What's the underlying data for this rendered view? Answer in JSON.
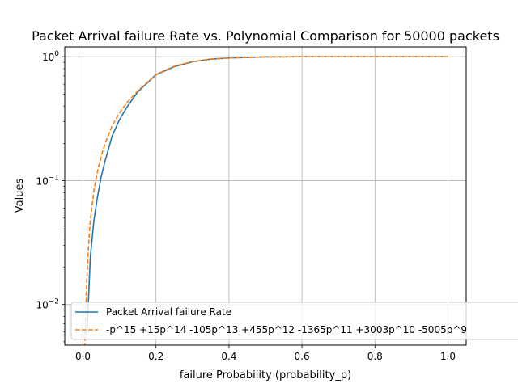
{
  "chart_data": {
    "type": "line",
    "title": "Packet Arrival failure Rate vs. Polynomial Comparison for 50000 packets",
    "xlabel": "failure Probability (probability_p)",
    "ylabel": "Values",
    "y_scale": "log",
    "xlim": [
      -0.05,
      1.05
    ],
    "ylim": [
      0.0047,
      1.2
    ],
    "x_ticks": [
      {
        "value": 0.0,
        "label": "0.0"
      },
      {
        "value": 0.2,
        "label": "0.2"
      },
      {
        "value": 0.4,
        "label": "0.4"
      },
      {
        "value": 0.6,
        "label": "0.6"
      },
      {
        "value": 0.8,
        "label": "0.8"
      },
      {
        "value": 1.0,
        "label": "1.0"
      }
    ],
    "y_ticks": [
      {
        "value": 0.01,
        "base": "10",
        "exp": "−2"
      },
      {
        "value": 0.1,
        "base": "10",
        "exp": "−1"
      },
      {
        "value": 1,
        "base": "10",
        "exp": "0"
      }
    ],
    "grid": true,
    "legend_position": "lower-left",
    "series": [
      {
        "name": "Packet Arrival failure Rate",
        "color": "#1f77b4",
        "style": "solid",
        "x": [
          0.01,
          0.015,
          0.02,
          0.03,
          0.04,
          0.05,
          0.06,
          0.08,
          0.1,
          0.12,
          0.15,
          0.2,
          0.25,
          0.3,
          0.35,
          0.4,
          0.5,
          0.6,
          0.7,
          0.8,
          0.9,
          1.0
        ],
        "values": [
          0.0055,
          0.011,
          0.024,
          0.048,
          0.075,
          0.108,
          0.142,
          0.23,
          0.31,
          0.39,
          0.52,
          0.715,
          0.83,
          0.91,
          0.955,
          0.976,
          0.995,
          1.0,
          1.0,
          1.0,
          1.0,
          1.0
        ]
      },
      {
        "name": "-p^15 +15p^14 -105p^13 +455p^12 -1365p^11 +3003p^10 -5005p^9",
        "color": "#ff7f0e",
        "style": "dashed",
        "x": [
          0.005,
          0.0075,
          0.01,
          0.015,
          0.02,
          0.03,
          0.04,
          0.05,
          0.06,
          0.08,
          0.1,
          0.12,
          0.15,
          0.2,
          0.25,
          0.3,
          0.35,
          0.4,
          0.5,
          0.6,
          0.7,
          0.8,
          0.9,
          1.0
        ],
        "values": [
          0.0045,
          0.0085,
          0.0148,
          0.029,
          0.048,
          0.084,
          0.12,
          0.158,
          0.198,
          0.277,
          0.353,
          0.425,
          0.53,
          0.718,
          0.837,
          0.914,
          0.956,
          0.977,
          0.995,
          1.0,
          1.0,
          1.0,
          1.0,
          1.0
        ]
      }
    ]
  }
}
